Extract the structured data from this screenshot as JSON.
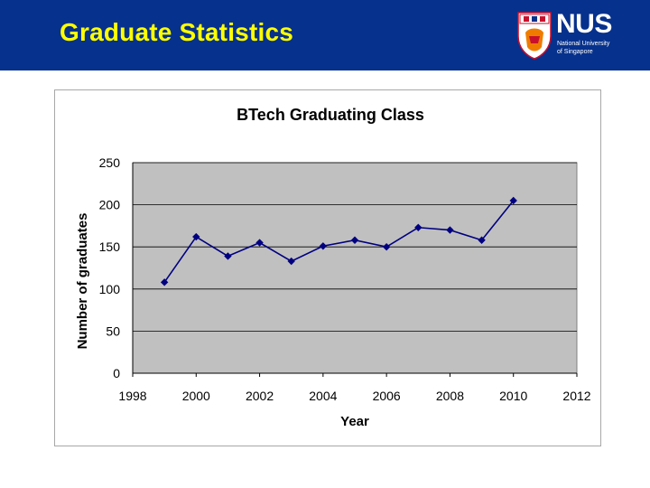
{
  "header": {
    "title": "Graduate Statistics",
    "background_color": "#06318c",
    "title_color": "#ffff00",
    "logo": {
      "wordmark": "NUS",
      "sub_line1": "National University",
      "sub_line2": "of Singapore"
    }
  },
  "chart_data": {
    "type": "line",
    "title": "BTech Graduating Class",
    "xlabel": "Year",
    "ylabel": "Number of graduates",
    "xlim": [
      1998,
      2012
    ],
    "ylim": [
      0,
      250
    ],
    "x_ticks": [
      "1998",
      "2000",
      "2002",
      "2004",
      "2006",
      "2008",
      "2010",
      "2012"
    ],
    "y_ticks": [
      "0",
      "50",
      "100",
      "150",
      "200",
      "250"
    ],
    "grid": true,
    "plot_background": "#c0c0c0",
    "line_color": "#000080",
    "series": [
      {
        "x": [
          1999,
          2000,
          2001,
          2002,
          2003,
          2004,
          2005,
          2006,
          2007,
          2008,
          2009,
          2010
        ],
        "values": [
          108,
          162,
          139,
          155,
          133,
          151,
          158,
          150,
          173,
          170,
          158,
          205
        ]
      }
    ]
  }
}
